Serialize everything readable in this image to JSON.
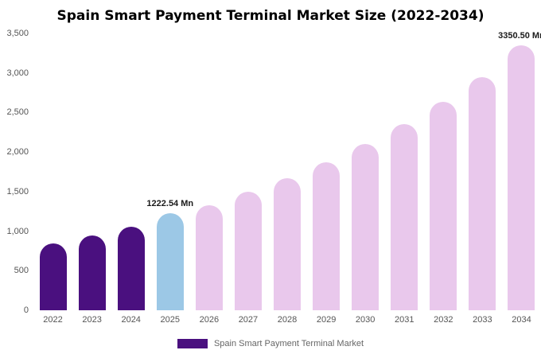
{
  "title": "Spain Smart Payment Terminal Market Size (2022-2034)",
  "legend": {
    "label": "Spain Smart Payment Terminal Market",
    "swatch_color": "#4A107F"
  },
  "colors": {
    "dark_purple": "#4A107F",
    "light_blue": "#9CC8E6",
    "pink": "#E9C8EC"
  },
  "chart_data": {
    "type": "bar",
    "title": "Spain Smart Payment Terminal Market Size (2022-2034)",
    "categories": [
      "2022",
      "2023",
      "2024",
      "2025",
      "2026",
      "2027",
      "2028",
      "2029",
      "2030",
      "2031",
      "2032",
      "2033",
      "2034"
    ],
    "values": [
      840,
      950,
      1060,
      1222.54,
      1330,
      1500,
      1670,
      1870,
      2100,
      2350,
      2640,
      2950,
      3350.5
    ],
    "bar_colors": [
      "dark_purple",
      "dark_purple",
      "dark_purple",
      "light_blue",
      "pink",
      "pink",
      "pink",
      "pink",
      "pink",
      "pink",
      "pink",
      "pink",
      "pink"
    ],
    "annotations": [
      {
        "index": 3,
        "text": "1222.54 Mn"
      },
      {
        "index": 12,
        "text": "3350.50 Mn"
      }
    ],
    "xlabel": "",
    "ylabel": "",
    "ylim": [
      0,
      3500
    ],
    "yticks": [
      "0",
      "500",
      "1,000",
      "1,500",
      "2,000",
      "2,500",
      "3,000",
      "3,500"
    ],
    "grid": false,
    "legend_position": "bottom",
    "legend_entries": [
      "Spain Smart Payment Terminal Market"
    ]
  }
}
